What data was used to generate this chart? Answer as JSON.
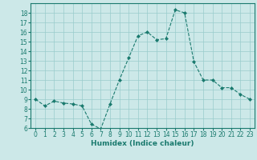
{
  "x": [
    0,
    1,
    2,
    3,
    4,
    5,
    6,
    7,
    8,
    9,
    10,
    11,
    12,
    13,
    14,
    15,
    16,
    17,
    18,
    19,
    20,
    21,
    22,
    23
  ],
  "y": [
    9.0,
    8.3,
    8.8,
    8.6,
    8.5,
    8.3,
    6.4,
    5.9,
    8.5,
    11.0,
    13.3,
    15.6,
    16.0,
    15.2,
    15.3,
    18.3,
    18.0,
    12.9,
    11.0,
    11.0,
    10.2,
    10.2,
    9.5,
    9.0
  ],
  "line_color": "#1a7a6e",
  "marker": "D",
  "marker_size": 2.0,
  "bg_color": "#cce8e8",
  "grid_color": "#99cccc",
  "xlabel": "Humidex (Indice chaleur)",
  "xlim": [
    -0.5,
    23.5
  ],
  "ylim": [
    6,
    19
  ],
  "yticks": [
    6,
    7,
    8,
    9,
    10,
    11,
    12,
    13,
    14,
    15,
    16,
    17,
    18
  ],
  "xticks": [
    0,
    1,
    2,
    3,
    4,
    5,
    6,
    7,
    8,
    9,
    10,
    11,
    12,
    13,
    14,
    15,
    16,
    17,
    18,
    19,
    20,
    21,
    22,
    23
  ],
  "label_fontsize": 6.5,
  "tick_fontsize": 5.5
}
